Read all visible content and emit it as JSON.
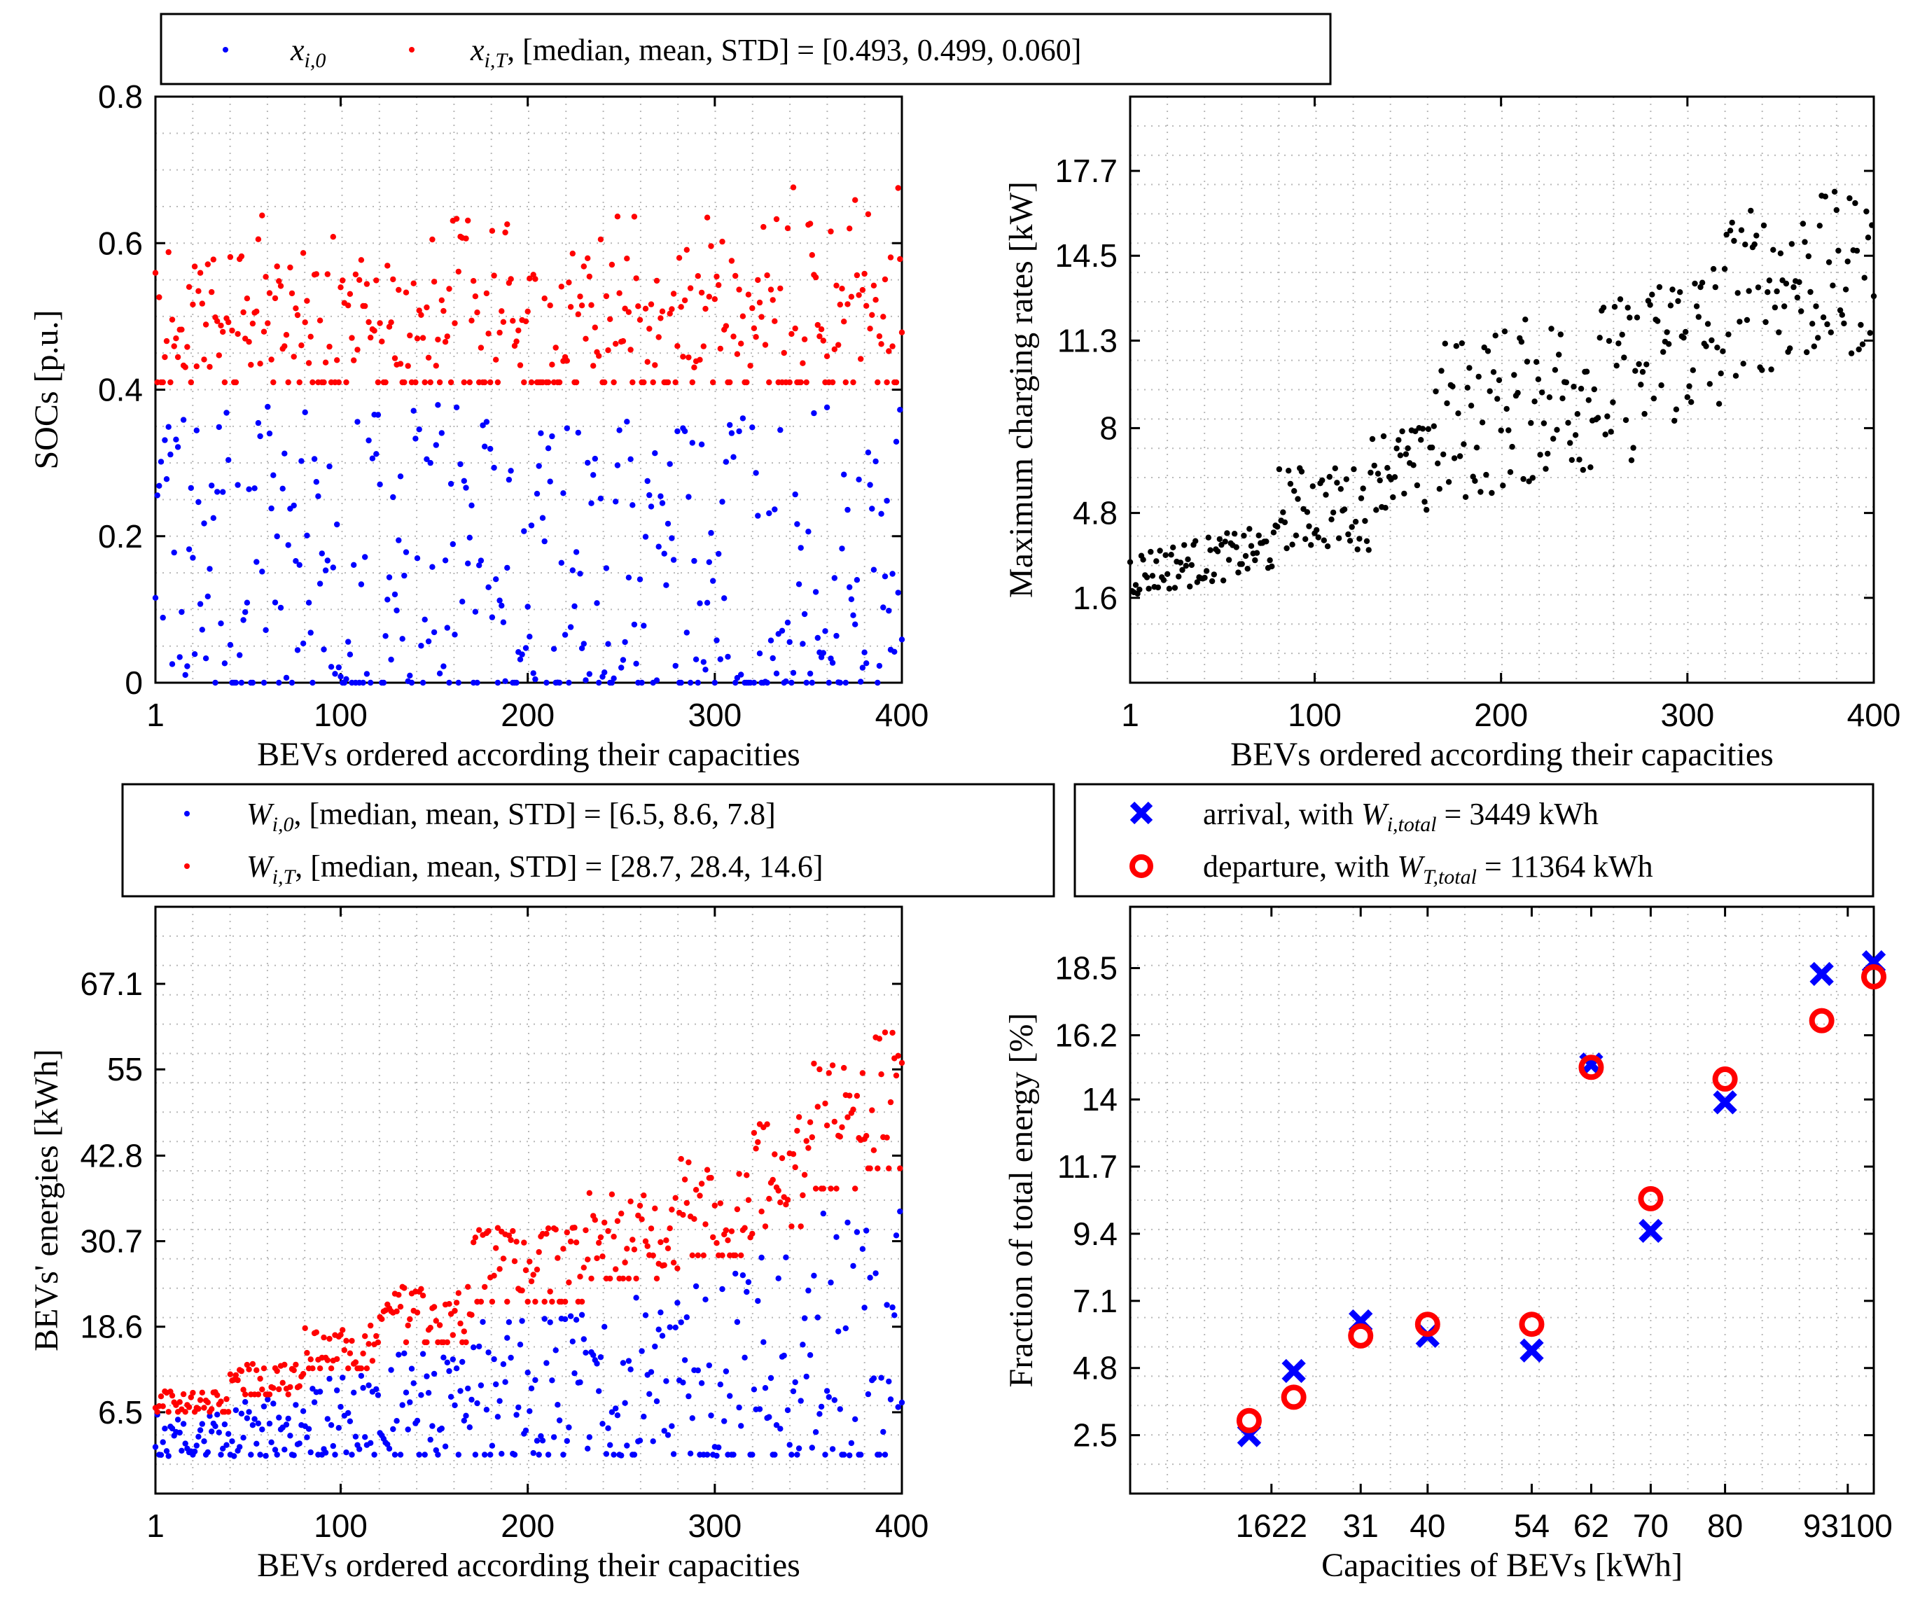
{
  "chart_data": [
    {
      "type": "scatter",
      "panel": "top-left",
      "xlabel": "BEVs ordered according their capacities",
      "ylabel": "SOCs [p.u.]",
      "xlim": [
        1,
        400
      ],
      "ylim": [
        0,
        0.8
      ],
      "xticks": [
        "1",
        "100",
        "200",
        "300",
        "400"
      ],
      "yticks": [
        "0",
        "0.2",
        "0.4",
        "0.6",
        "0.8"
      ],
      "legend_position": "top",
      "series": [
        {
          "name": "x_{i,0}",
          "label_main": "x",
          "label_sub": "i,0",
          "color": "#0000ff",
          "range": [
            0.0,
            0.38
          ],
          "n": 400
        },
        {
          "name": "x_{i,T}",
          "label_main": "x",
          "label_sub": "i,T",
          "label_suffix": ", [median, mean, STD] = [0.493, 0.499, 0.060]",
          "color": "#ff0000",
          "range": [
            0.41,
            0.68
          ],
          "n": 400
        }
      ]
    },
    {
      "type": "scatter",
      "panel": "top-right",
      "xlabel": "BEVs ordered according their capacities",
      "ylabel": "Maximum charging rates [kW]",
      "xlim": [
        1,
        400
      ],
      "ylim": [
        -1.6,
        20.5
      ],
      "xticks": [
        "1",
        "100",
        "200",
        "300",
        "400"
      ],
      "yticks": [
        "1.6",
        "4.8",
        "8",
        "11.3",
        "14.5",
        "17.7"
      ],
      "series": [
        {
          "name": "max charging rate",
          "color": "#000000",
          "trend": [
            [
              1,
              2.5
            ],
            [
              80,
              3.5
            ],
            [
              81,
              5.0
            ],
            [
              130,
              5.0
            ],
            [
              131,
              6.5
            ],
            [
              160,
              6.5
            ],
            [
              161,
              8.0
            ],
            [
              240,
              9.5
            ],
            [
              280,
              10.0
            ],
            [
              281,
              11.0
            ],
            [
              320,
              11.5
            ],
            [
              321,
              13.0
            ],
            [
              400,
              14.0
            ]
          ],
          "n": 400
        }
      ]
    },
    {
      "type": "scatter",
      "panel": "bottom-left",
      "xlabel": "BEVs ordered according their capacities",
      "ylabel": "BEVs' energies [kWh]",
      "xlim": [
        1,
        400
      ],
      "ylim": [
        -5,
        78
      ],
      "xticks": [
        "1",
        "100",
        "200",
        "300",
        "400"
      ],
      "yticks": [
        "6.5",
        "18.6",
        "30.7",
        "42.8",
        "55",
        "67.1"
      ],
      "legend_position": "top",
      "series": [
        {
          "name": "W_{i,0}",
          "label_main": "W",
          "label_sub": "i,0",
          "label_suffix": ", [median, mean, STD] = [6.5, 8.6, 7.8]",
          "color": "#0000ff",
          "n": 400
        },
        {
          "name": "W_{i,T}",
          "label_main": "W",
          "label_sub": "i,T",
          "label_suffix": ", [median, mean, STD] = [28.7, 28.4, 14.6]",
          "color": "#ff0000",
          "n": 400
        }
      ]
    },
    {
      "type": "scatter",
      "panel": "bottom-right",
      "xlabel": "Capacities of BEVs [kWh]",
      "ylabel": "Fraction of total energy [%]",
      "xlim": [
        0,
        100
      ],
      "ylim": [
        0.5,
        20.6
      ],
      "x": [
        16,
        22,
        31,
        40,
        54,
        62,
        70,
        80,
        93,
        100
      ],
      "xticks": [
        "1622",
        "31",
        "40",
        "54",
        "62",
        "70",
        "80",
        "93100"
      ],
      "xtick_values": [
        19,
        31,
        40,
        54,
        62,
        70,
        80,
        96.5
      ],
      "yticks": [
        "2.5",
        "4.8",
        "7.1",
        "9.4",
        "11.7",
        "14",
        "16.2",
        "18.5"
      ],
      "legend_position": "top",
      "series": [
        {
          "name": "arrival",
          "label_prefix": "arrival, with ",
          "label_main": "W",
          "label_sub": "i,total",
          "label_suffix": " = 3449 kWh",
          "marker": "x",
          "color": "#0000ff",
          "values": [
            2.5,
            4.7,
            6.4,
            5.9,
            5.4,
            15.2,
            9.5,
            13.9,
            18.3,
            18.7
          ]
        },
        {
          "name": "departure",
          "label_prefix": "departure, with ",
          "label_main": "W",
          "label_sub": "T,total",
          "label_suffix": " = 11364 kWh",
          "marker": "o",
          "color": "#ff0000",
          "values": [
            3.0,
            3.8,
            5.9,
            6.3,
            6.3,
            15.1,
            10.6,
            14.7,
            16.7,
            18.2
          ]
        }
      ]
    }
  ]
}
